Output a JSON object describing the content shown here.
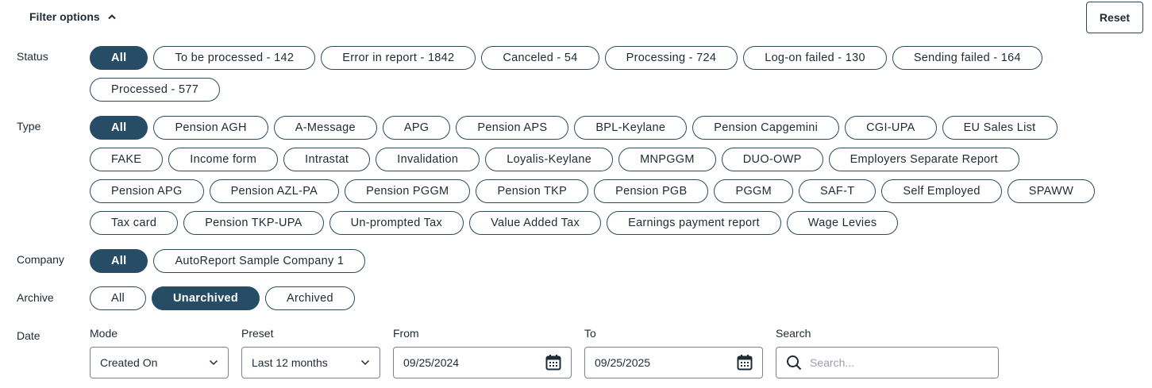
{
  "header": {
    "title": "Filter options",
    "reset_label": "Reset"
  },
  "status": {
    "label": "Status",
    "selected": 0,
    "options": [
      "All",
      "To be processed - 142",
      "Error in report - 1842",
      "Canceled - 54",
      "Processing - 724",
      "Log-on failed - 130",
      "Sending failed - 164",
      "Processed - 577"
    ]
  },
  "type": {
    "label": "Type",
    "selected": 0,
    "options": [
      "All",
      "Pension AGH",
      "A-Message",
      "APG",
      "Pension APS",
      "BPL-Keylane",
      "Pension Capgemini",
      "CGI-UPA",
      "EU Sales List",
      "FAKE",
      "Income form",
      "Intrastat",
      "Invalidation",
      "Loyalis-Keylane",
      "MNPGGM",
      "DUO-OWP",
      "Employers Separate Report",
      "Pension APG",
      "Pension AZL-PA",
      "Pension PGGM",
      "Pension TKP",
      "Pension PGB",
      "PGGM",
      "SAF-T",
      "Self Employed",
      "SPAWW",
      "Tax card",
      "Pension TKP-UPA",
      "Un-prompted Tax",
      "Value Added Tax",
      "Earnings payment report",
      "Wage Levies"
    ]
  },
  "company": {
    "label": "Company",
    "selected": 0,
    "options": [
      "All",
      "AutoReport Sample Company 1"
    ]
  },
  "archive": {
    "label": "Archive",
    "selected": 1,
    "options": [
      "All",
      "Unarchived",
      "Archived"
    ]
  },
  "date": {
    "label": "Date",
    "mode": {
      "label": "Mode",
      "value": "Created On"
    },
    "preset": {
      "label": "Preset",
      "value": "Last 12 months"
    },
    "from": {
      "label": "From",
      "value": "09/25/2024"
    },
    "to": {
      "label": "To",
      "value": "09/25/2025"
    },
    "search": {
      "label": "Search",
      "placeholder": "Search..."
    }
  },
  "colors": {
    "accent": "#264c66"
  }
}
